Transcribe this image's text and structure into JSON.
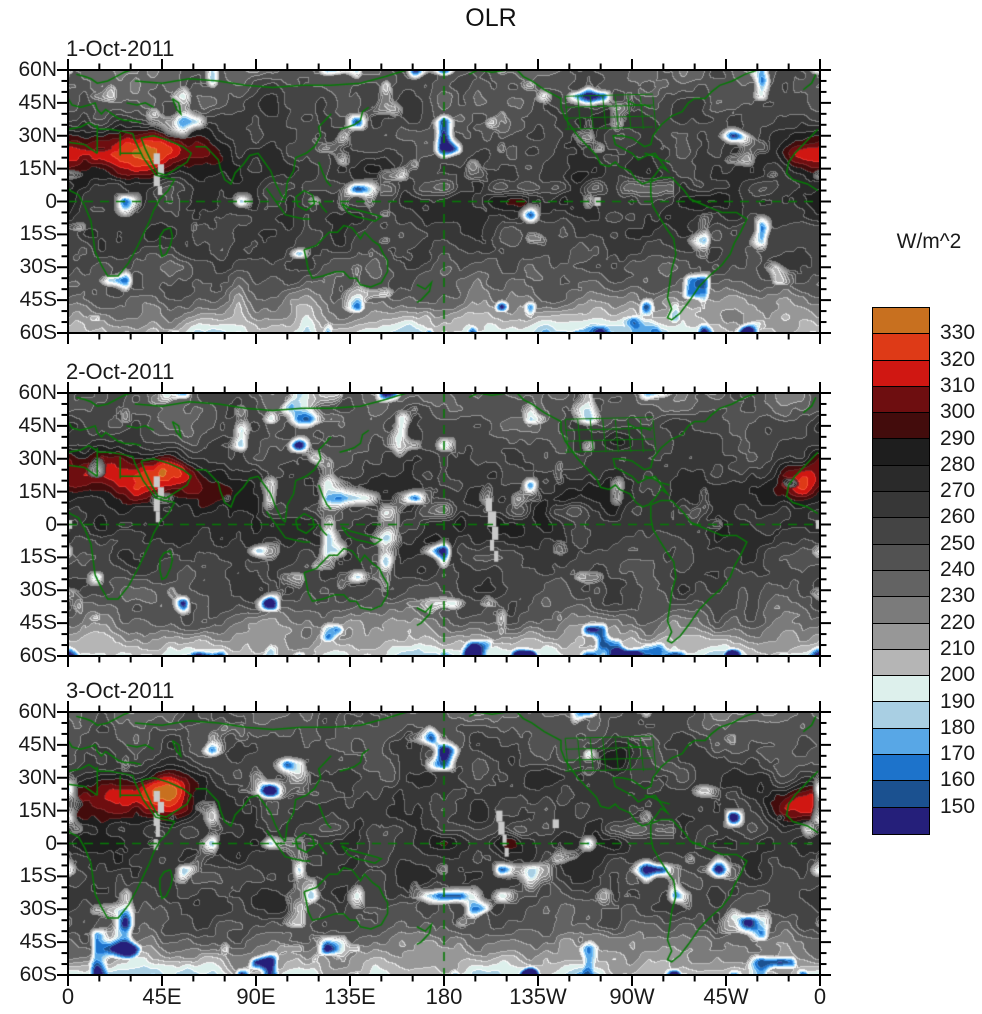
{
  "title": "OLR",
  "panels": [
    {
      "date": "1-Oct-2011"
    },
    {
      "date": "2-Oct-2011"
    },
    {
      "date": "3-Oct-2011"
    }
  ],
  "y_axis": {
    "tick_labels": [
      "60N",
      "45N",
      "30N",
      "15N",
      "0",
      "15S",
      "30S",
      "45S",
      "60S"
    ]
  },
  "x_axis": {
    "tick_labels": [
      "0",
      "45E",
      "90E",
      "135E",
      "180",
      "135W",
      "90W",
      "45W",
      "0"
    ]
  },
  "colorbar": {
    "unit_label": "W/m^2",
    "tick_labels": [
      "330",
      "320",
      "310",
      "300",
      "290",
      "280",
      "270",
      "260",
      "250",
      "240",
      "230",
      "220",
      "210",
      "200",
      "190",
      "180",
      "170",
      "160",
      "150"
    ],
    "colors_top_to_bottom": [
      "#C8701F",
      "#DE3A17",
      "#D01712",
      "#6E0E10",
      "#430C0C",
      "#1E1E1E",
      "#2A2A2A",
      "#373737",
      "#444444",
      "#525252",
      "#636363",
      "#7B7B7B",
      "#979797",
      "#B5B5B5",
      "#DDF0EC",
      "#A9CFE3",
      "#58A7E6",
      "#1D73CB",
      "#1B5190",
      "#251F7A"
    ]
  },
  "map_overlay": {
    "coastline_color": "#077A07",
    "reference_line_color": "#077A07",
    "missing_data_color": "#C9C9C9",
    "axis_color": "#000000"
  },
  "chart_data": {
    "type": "heatmap",
    "title": "OLR",
    "unit": "W/m^2",
    "panel_dates": [
      "1-Oct-2011",
      "2-Oct-2011",
      "3-Oct-2011"
    ],
    "lon_tick_labels": [
      "0",
      "45E",
      "90E",
      "135E",
      "180",
      "135W",
      "90W",
      "45W",
      "0"
    ],
    "lat_tick_labels": [
      "60N",
      "45N",
      "30N",
      "15N",
      "0",
      "15S",
      "30S",
      "45S",
      "60S"
    ],
    "lon_range_deg": [
      0,
      360
    ],
    "lat_range_deg": [
      -60,
      60
    ],
    "contour_levels_w_m2": [
      150,
      160,
      170,
      180,
      190,
      200,
      210,
      220,
      230,
      240,
      250,
      260,
      270,
      280,
      290,
      300,
      310,
      320,
      330
    ],
    "palette_low_to_high": [
      "#251F7A",
      "#1B5190",
      "#1D73CB",
      "#58A7E6",
      "#A9CFE3",
      "#DDF0EC",
      "#B5B5B5",
      "#979797",
      "#7B7B7B",
      "#636363",
      "#525252",
      "#444444",
      "#373737",
      "#2A2A2A",
      "#1E1E1E",
      "#430C0C",
      "#6E0E10",
      "#D01712",
      "#DE3A17",
      "#C8701F"
    ],
    "legend_position": "right",
    "notes": "Three stacked filled-contour global maps of outgoing longwave radiation for consecutive days (1-3 Oct 2011). High OLR (red/orange, >290 W/m^2) over North Africa and Arabia; deep-convection lows (blue, <200 W/m^2) scattered in tropics and southern ocean; green coastlines and borders overlaid; dashed green equator and 180-degree meridian reference lines; light-gray patches denote missing data."
  }
}
